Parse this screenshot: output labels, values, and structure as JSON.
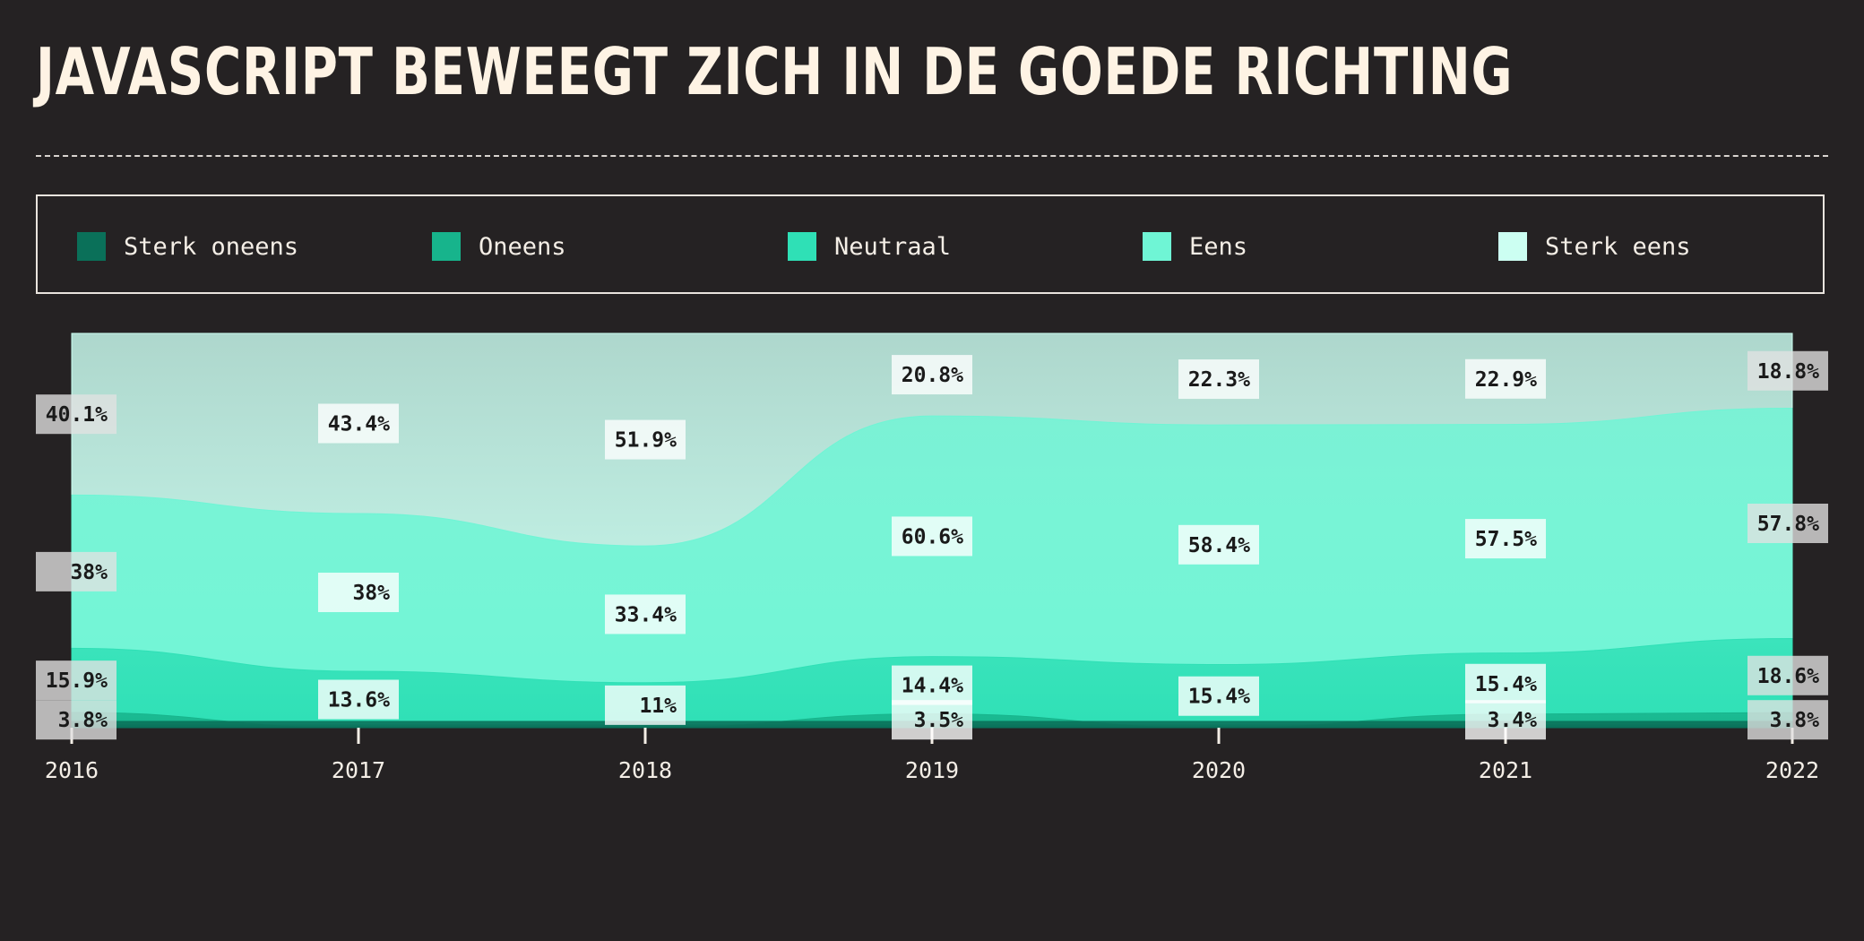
{
  "title": "JAVASCRIPT BEWEEGT ZICH IN DE GOEDE RICHTING",
  "legend": [
    {
      "label": "Sterk oneens",
      "color": "#0a7059"
    },
    {
      "label": "Oneens",
      "color": "#17b48c"
    },
    {
      "label": "Neutraal",
      "color": "#2fe0b6"
    },
    {
      "label": "Eens",
      "color": "#6ff5d5"
    },
    {
      "label": "Sterk eens",
      "color": "#ccfff2"
    }
  ],
  "chart_data": {
    "type": "area",
    "stacked": true,
    "normalized": true,
    "x": [
      "2016",
      "2017",
      "2018",
      "2019",
      "2020",
      "2021",
      "2022"
    ],
    "series": [
      {
        "name": "Sterk oneens",
        "color": "#0a7059",
        "values": [
          null,
          null,
          null,
          null,
          null,
          null,
          null
        ]
      },
      {
        "name": "Oneens",
        "color": "#17b48c",
        "values": [
          3.8,
          null,
          null,
          3.5,
          null,
          3.4,
          3.8
        ]
      },
      {
        "name": "Neutraal",
        "color": "#2fe0b6",
        "values": [
          15.9,
          13.6,
          11,
          14.4,
          15.4,
          15.4,
          18.6
        ]
      },
      {
        "name": "Eens",
        "color": "#6ff5d5",
        "values": [
          38,
          38,
          33.4,
          60.6,
          58.4,
          57.5,
          57.8
        ]
      },
      {
        "name": "Sterk eens",
        "color": "#ccfff2",
        "values": [
          40.1,
          43.4,
          51.9,
          20.8,
          22.3,
          22.9,
          18.8
        ]
      }
    ],
    "data_labels": [
      [
        "",
        "3.8%",
        "15.9%",
        "38%",
        "40.1%"
      ],
      [
        "",
        "",
        "13.6%",
        "38%",
        "43.4%"
      ],
      [
        "",
        "",
        "11%",
        "33.4%",
        "51.9%"
      ],
      [
        "",
        "3.5%",
        "14.4%",
        "60.6%",
        "20.8%"
      ],
      [
        "",
        "",
        "15.4%",
        "58.4%",
        "22.3%"
      ],
      [
        "",
        "3.4%",
        "15.4%",
        "57.5%",
        "22.9%"
      ],
      [
        "",
        "3.8%",
        "18.6%",
        "57.8%",
        "18.8%"
      ]
    ],
    "ylim": [
      0,
      100
    ],
    "grid": false,
    "legend_position": "top"
  }
}
